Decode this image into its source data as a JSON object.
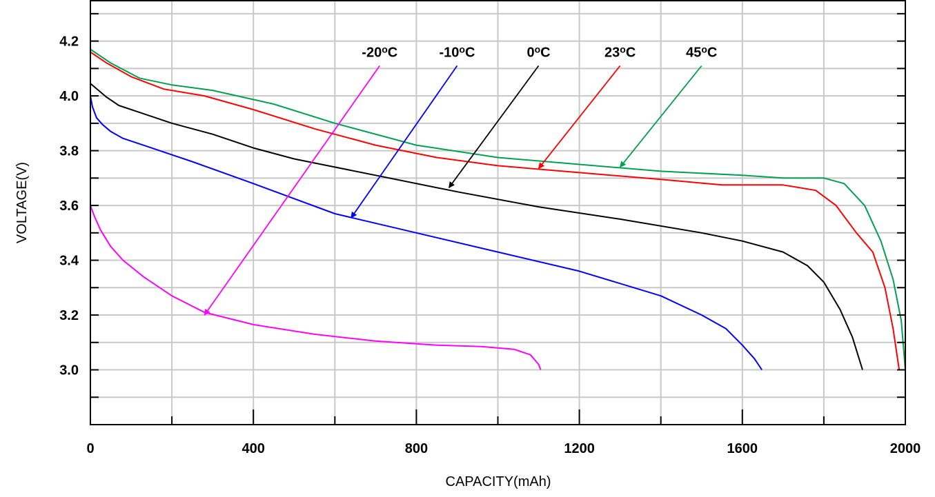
{
  "chart_data": {
    "type": "line",
    "title": "",
    "xlabel": "CAPACITY(mAh)",
    "ylabel": "VOLTAGE(V)",
    "xlim": [
      0,
      2000
    ],
    "ylim": [
      2.8,
      4.35
    ],
    "xticks": [
      0,
      400,
      800,
      1200,
      1600,
      2000
    ],
    "xtick_labels": [
      "0",
      "400",
      "800",
      "1200",
      "1600",
      "2000"
    ],
    "yticks": [
      3.0,
      3.2,
      3.4,
      3.6,
      3.8,
      4.0,
      4.2
    ],
    "ytick_labels": [
      "3.0",
      "3.2",
      "3.4",
      "3.6",
      "3.8",
      "4.0",
      "4.2"
    ],
    "grid": true,
    "series": [
      {
        "name": "-20°C",
        "label": "-20",
        "unit": "oC",
        "color": "#ff00ff",
        "points": [
          [
            0,
            3.6
          ],
          [
            10,
            3.56
          ],
          [
            25,
            3.51
          ],
          [
            50,
            3.45
          ],
          [
            80,
            3.4
          ],
          [
            130,
            3.34
          ],
          [
            200,
            3.27
          ],
          [
            280,
            3.21
          ],
          [
            400,
            3.165
          ],
          [
            550,
            3.13
          ],
          [
            700,
            3.105
          ],
          [
            850,
            3.09
          ],
          [
            960,
            3.085
          ],
          [
            1040,
            3.075
          ],
          [
            1080,
            3.055
          ],
          [
            1100,
            3.02
          ],
          [
            1105,
            3.0
          ]
        ],
        "arrow_from": [
          710,
          4.11
        ],
        "arrow_to": [
          280,
          3.2
        ]
      },
      {
        "name": "-10°C",
        "label": "-10",
        "unit": "oC",
        "color": "#0000ff",
        "points": [
          [
            0,
            4.0
          ],
          [
            5,
            3.96
          ],
          [
            15,
            3.92
          ],
          [
            30,
            3.895
          ],
          [
            50,
            3.87
          ],
          [
            80,
            3.845
          ],
          [
            150,
            3.81
          ],
          [
            250,
            3.76
          ],
          [
            400,
            3.68
          ],
          [
            600,
            3.57
          ],
          [
            800,
            3.5
          ],
          [
            1000,
            3.43
          ],
          [
            1200,
            3.36
          ],
          [
            1400,
            3.27
          ],
          [
            1500,
            3.2
          ],
          [
            1560,
            3.15
          ],
          [
            1600,
            3.09
          ],
          [
            1630,
            3.04
          ],
          [
            1648,
            3.0
          ]
        ],
        "arrow_from": [
          900,
          4.11
        ],
        "arrow_to": [
          640,
          3.555
        ]
      },
      {
        "name": "0°C",
        "label": "0",
        "unit": "oC",
        "color": "#000000",
        "points": [
          [
            0,
            4.045
          ],
          [
            20,
            4.02
          ],
          [
            40,
            3.995
          ],
          [
            70,
            3.965
          ],
          [
            120,
            3.94
          ],
          [
            200,
            3.9
          ],
          [
            300,
            3.86
          ],
          [
            400,
            3.81
          ],
          [
            500,
            3.77
          ],
          [
            700,
            3.71
          ],
          [
            900,
            3.65
          ],
          [
            1100,
            3.595
          ],
          [
            1300,
            3.55
          ],
          [
            1500,
            3.5
          ],
          [
            1600,
            3.47
          ],
          [
            1700,
            3.43
          ],
          [
            1760,
            3.38
          ],
          [
            1800,
            3.32
          ],
          [
            1840,
            3.22
          ],
          [
            1870,
            3.12
          ],
          [
            1895,
            3.0
          ]
        ],
        "arrow_from": [
          1100,
          4.11
        ],
        "arrow_to": [
          880,
          3.665
        ]
      },
      {
        "name": "23°C",
        "label": "23",
        "unit": "oC",
        "color": "#ff0000",
        "points": [
          [
            0,
            4.16
          ],
          [
            40,
            4.12
          ],
          [
            100,
            4.07
          ],
          [
            180,
            4.025
          ],
          [
            280,
            4.0
          ],
          [
            400,
            3.95
          ],
          [
            550,
            3.88
          ],
          [
            700,
            3.82
          ],
          [
            850,
            3.775
          ],
          [
            1000,
            3.745
          ],
          [
            1200,
            3.72
          ],
          [
            1400,
            3.695
          ],
          [
            1550,
            3.675
          ],
          [
            1700,
            3.675
          ],
          [
            1780,
            3.655
          ],
          [
            1830,
            3.6
          ],
          [
            1880,
            3.5
          ],
          [
            1920,
            3.43
          ],
          [
            1950,
            3.3
          ],
          [
            1970,
            3.15
          ],
          [
            1985,
            3.0
          ]
        ],
        "arrow_from": [
          1300,
          4.11
        ],
        "arrow_to": [
          1100,
          3.735
        ]
      },
      {
        "name": "45°C",
        "label": "45",
        "unit": "oC",
        "color": "#00a050",
        "points": [
          [
            0,
            4.17
          ],
          [
            50,
            4.12
          ],
          [
            120,
            4.065
          ],
          [
            200,
            4.04
          ],
          [
            300,
            4.02
          ],
          [
            450,
            3.97
          ],
          [
            600,
            3.9
          ],
          [
            800,
            3.82
          ],
          [
            1000,
            3.775
          ],
          [
            1200,
            3.75
          ],
          [
            1400,
            3.725
          ],
          [
            1600,
            3.71
          ],
          [
            1700,
            3.7
          ],
          [
            1800,
            3.7
          ],
          [
            1850,
            3.68
          ],
          [
            1900,
            3.6
          ],
          [
            1940,
            3.47
          ],
          [
            1970,
            3.33
          ],
          [
            1990,
            3.18
          ],
          [
            2000,
            3.0
          ]
        ],
        "arrow_from": [
          1500,
          4.11
        ],
        "arrow_to": [
          1300,
          3.74
        ]
      }
    ]
  }
}
